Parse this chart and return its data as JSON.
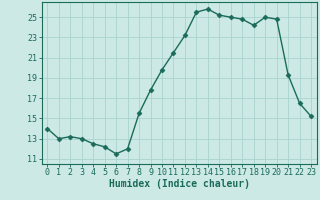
{
  "x": [
    0,
    1,
    2,
    3,
    4,
    5,
    6,
    7,
    8,
    9,
    10,
    11,
    12,
    13,
    14,
    15,
    16,
    17,
    18,
    19,
    20,
    21,
    22,
    23
  ],
  "y": [
    14.0,
    13.0,
    13.2,
    13.0,
    12.5,
    12.2,
    11.5,
    12.0,
    15.5,
    17.8,
    19.8,
    21.5,
    23.2,
    25.5,
    25.8,
    25.2,
    25.0,
    24.8,
    24.2,
    25.0,
    24.8,
    19.3,
    16.5,
    15.2
  ],
  "line_color": "#1a6b5a",
  "marker": "D",
  "markersize": 2.5,
  "linewidth": 1.0,
  "bg_color": "#cce9e5",
  "grid_color": "#aad4cf",
  "xlabel": "Humidex (Indice chaleur)",
  "xlabel_fontsize": 7,
  "tick_fontsize": 6,
  "yticks": [
    11,
    13,
    15,
    17,
    19,
    21,
    23,
    25
  ],
  "xticks": [
    0,
    1,
    2,
    3,
    4,
    5,
    6,
    7,
    8,
    9,
    10,
    11,
    12,
    13,
    14,
    15,
    16,
    17,
    18,
    19,
    20,
    21,
    22,
    23
  ],
  "xlim": [
    -0.5,
    23.5
  ],
  "ylim": [
    10.5,
    26.5
  ]
}
